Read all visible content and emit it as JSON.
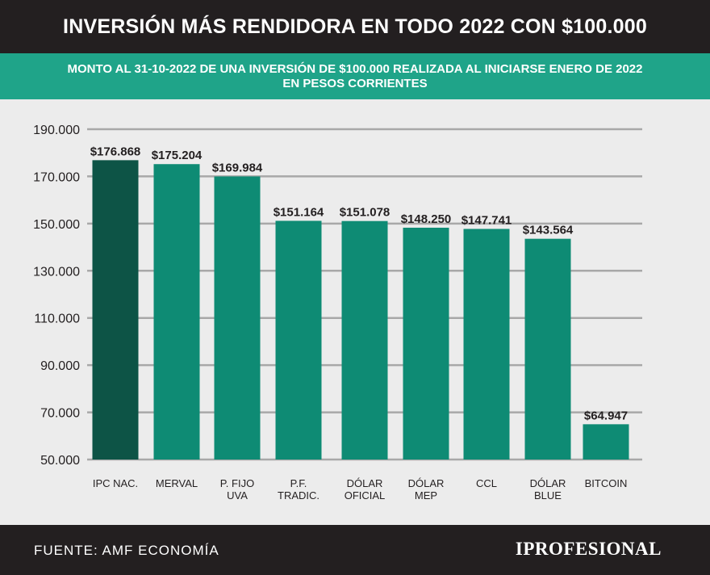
{
  "header": {
    "title": "INVERSIÓN MÁS RENDIDORA EN TODO 2022 CON $100.000",
    "subtitle_line1": "MONTO AL 31-10-2022 DE UNA INVERSIÓN DE $100.000 REALIZADA AL INICIARSE ENERO DE 2022",
    "subtitle_line2": "EN PESOS CORRIENTES"
  },
  "footer": {
    "source": "FUENTE: AMF ECONOMÍA",
    "logo": "IPROFESIONAL"
  },
  "colors": {
    "header_bg": "#231f20",
    "subheader_bg": "#1fa489",
    "highlight_bar": "#0d5446",
    "bar": "#0e8b74",
    "grid": "#a8a8a8",
    "background": "#ececec"
  },
  "chart_data": {
    "type": "bar",
    "categories": [
      [
        "IPC NAC."
      ],
      [
        "MERVAL"
      ],
      [
        "P. FIJO",
        "UVA"
      ],
      [
        "P.F.",
        "TRADIC."
      ],
      [
        "DÓLAR",
        "OFICIAL"
      ],
      [
        "DÓLAR",
        "MEP"
      ],
      [
        "CCL"
      ],
      [
        "DÓLAR",
        "BLUE"
      ],
      [
        "BITCOIN"
      ]
    ],
    "values": [
      176868,
      175204,
      169984,
      151164,
      151078,
      148250,
      147741,
      143564,
      64947
    ],
    "data_labels": [
      "$176.868",
      "$175.204",
      "$169.984",
      "$151.164",
      "$151.078",
      "$148.250",
      "$147.741",
      "$143.564",
      "$64.947"
    ],
    "highlight_index": 0,
    "ylim": [
      50000,
      190000
    ],
    "ytick_values": [
      50000,
      70000,
      90000,
      110000,
      130000,
      150000,
      170000,
      190000
    ],
    "ytick_labels": [
      "50.000",
      "70.000",
      "90.000",
      "110.000",
      "130.000",
      "150.000",
      "170.000",
      "190.000"
    ],
    "grid": true,
    "xlabel": "",
    "ylabel": ""
  }
}
